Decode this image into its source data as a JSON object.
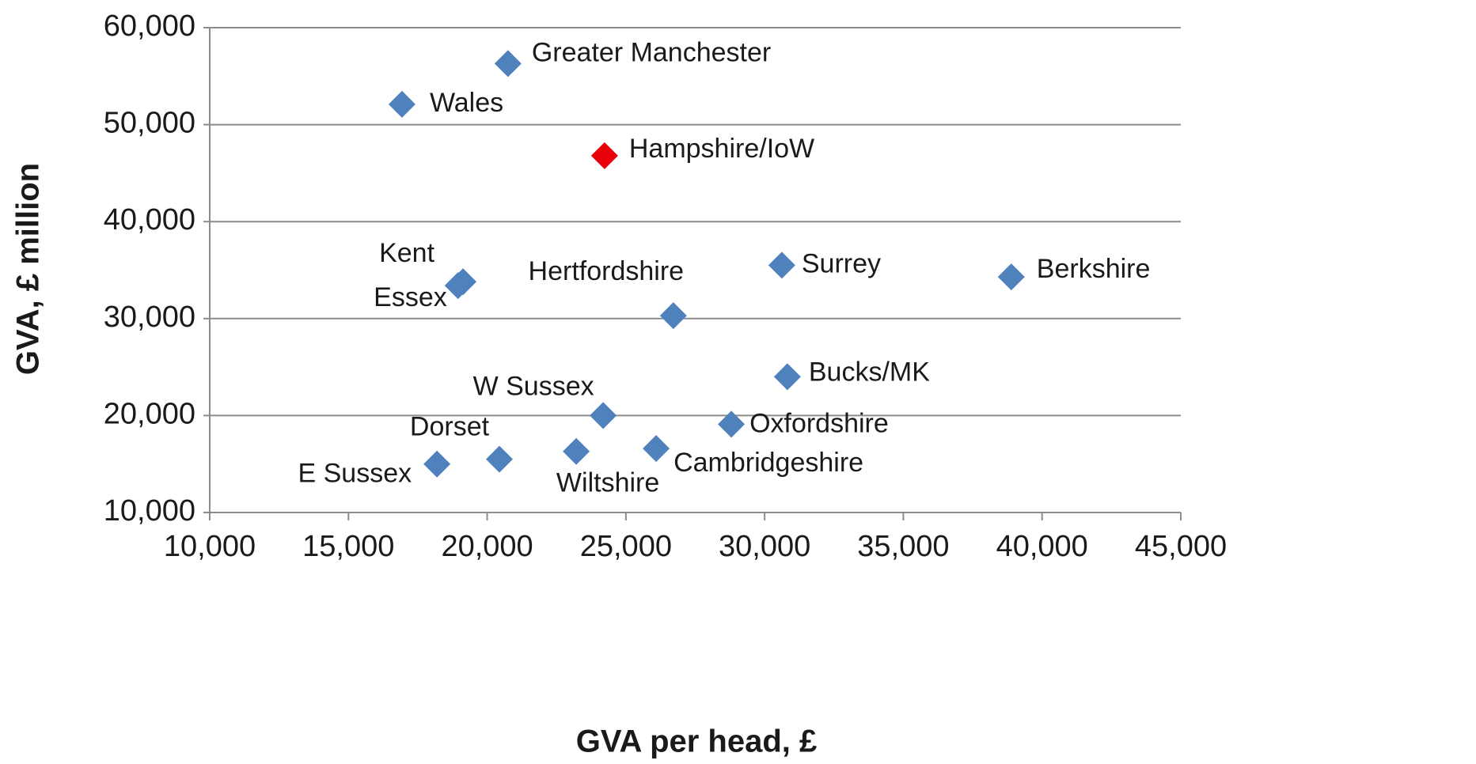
{
  "chart_data": {
    "type": "scatter",
    "xlabel": "GVA per head, £",
    "ylabel": "GVA, £ million",
    "labels": [
      "Greater Manchester",
      "Wales",
      "Hampshire/IoW",
      "Kent",
      "Essex",
      "Hertfordshire",
      "Surrey",
      "Berkshire",
      "Bucks/MK",
      "W Sussex",
      "Oxfordshire",
      "Dorset",
      "E Sussex",
      "Wiltshire",
      "Cambridgeshire"
    ],
    "x": [
      20750,
      16930,
      24230,
      19130,
      18950,
      26710,
      30620,
      38890,
      30820,
      24180,
      28800,
      20440,
      18190,
      23210,
      26090
    ],
    "values": [
      56300,
      52100,
      46800,
      33800,
      33400,
      30300,
      35500,
      34300,
      24000,
      20000,
      19100,
      15500,
      15000,
      16300,
      16600
    ],
    "colors": [
      "#4f81bd",
      "#4f81bd",
      "#e8000b",
      "#4f81bd",
      "#4f81bd",
      "#4f81bd",
      "#4f81bd",
      "#4f81bd",
      "#4f81bd",
      "#4f81bd",
      "#4f81bd",
      "#4f81bd",
      "#4f81bd",
      "#4f81bd",
      "#4f81bd"
    ],
    "xlim": [
      10000,
      45000
    ],
    "xticks": [
      {
        "value": 10000,
        "label": "10,000"
      },
      {
        "value": 15000,
        "label": "15,000"
      },
      {
        "value": 20000,
        "label": "20,000"
      },
      {
        "value": 25000,
        "label": "25,000"
      },
      {
        "value": 30000,
        "label": "30,000"
      },
      {
        "value": 35000,
        "label": "35,000"
      },
      {
        "value": 40000,
        "label": "40,000"
      },
      {
        "value": 45000,
        "label": "45,000"
      }
    ],
    "ylim": [
      10000,
      60000
    ],
    "yticks": [
      {
        "value": 10000,
        "label": "10,000"
      },
      {
        "value": 20000,
        "label": "20,000"
      },
      {
        "value": 30000,
        "label": "30,000"
      },
      {
        "value": 40000,
        "label": "40,000"
      },
      {
        "value": 50000,
        "label": "50,000"
      },
      {
        "value": 60000,
        "label": "60,000"
      }
    ],
    "grid": true
  }
}
